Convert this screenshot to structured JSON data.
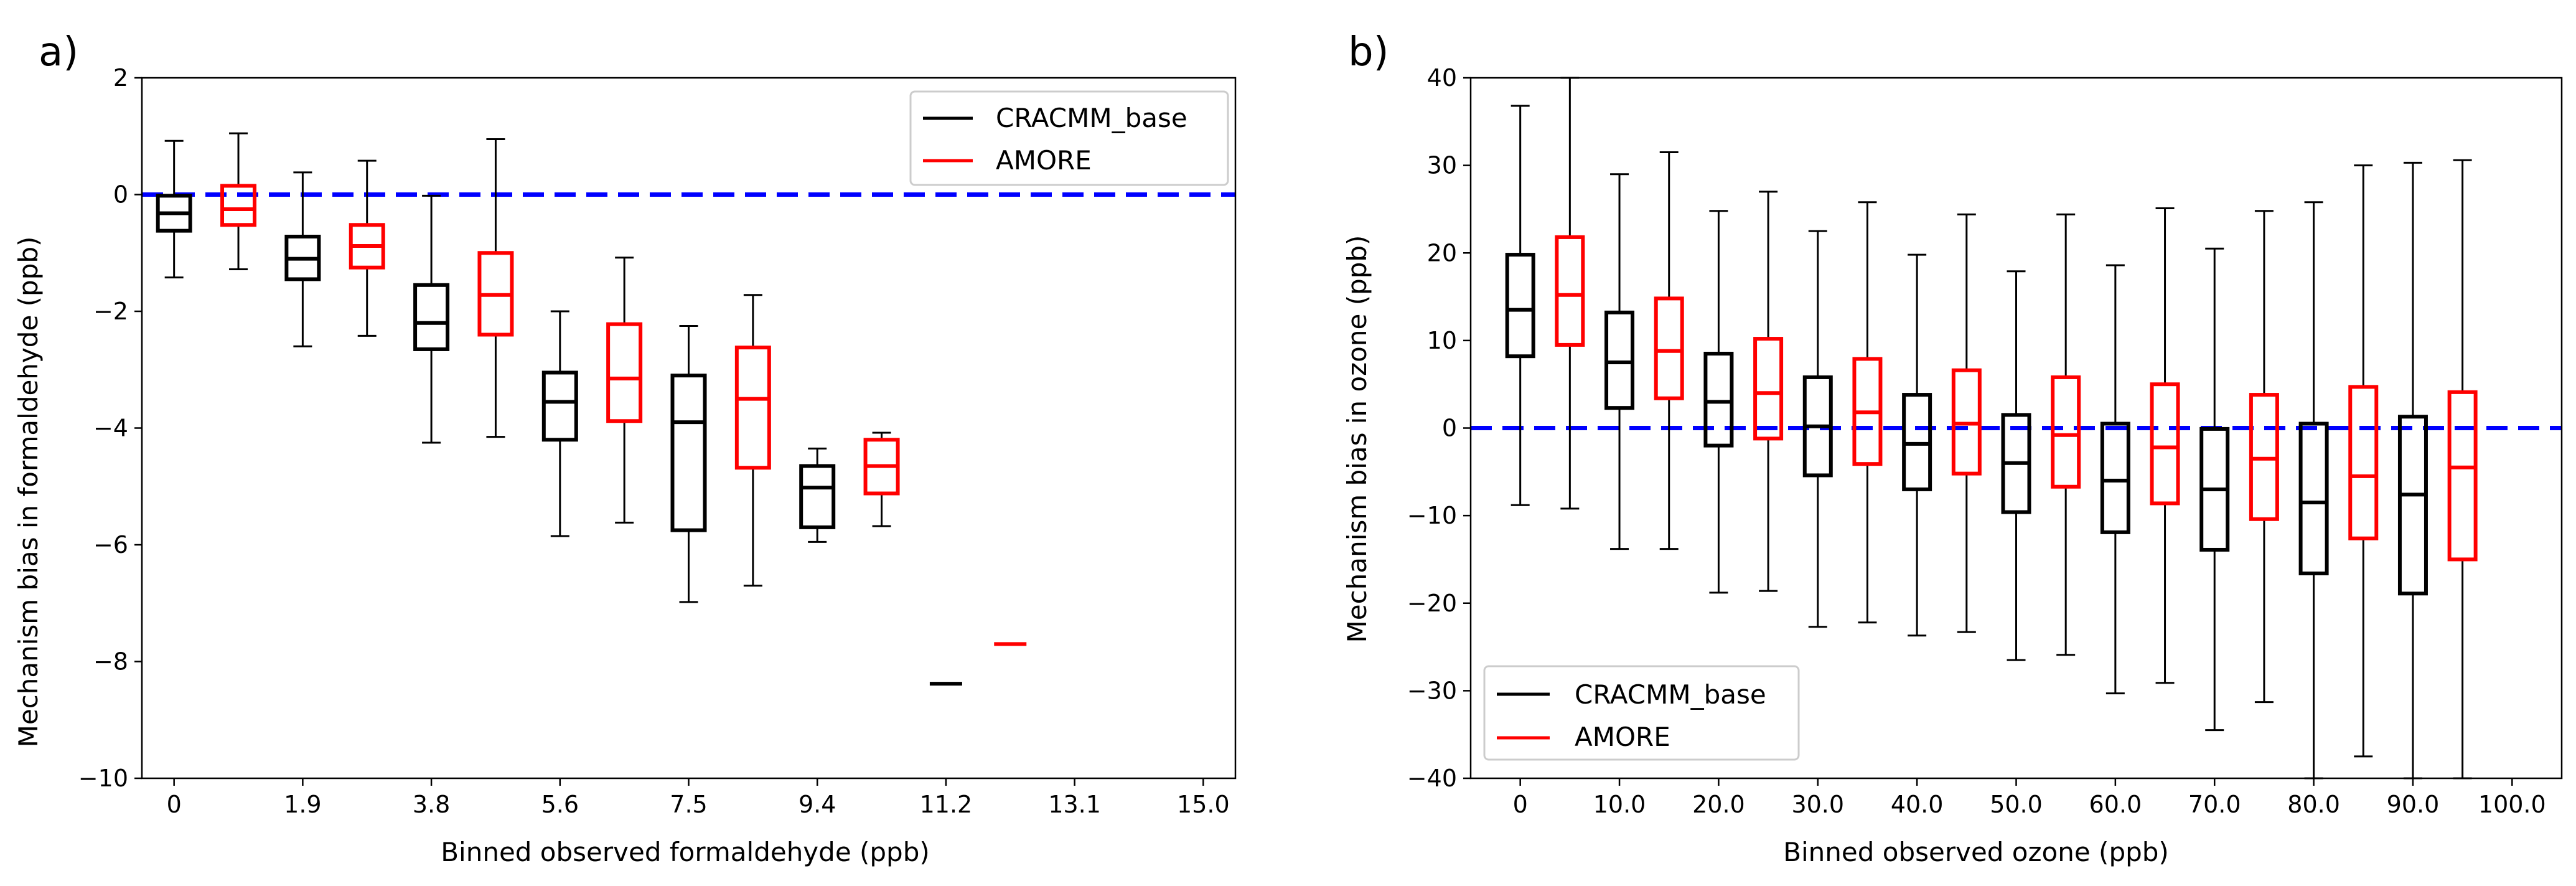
{
  "colors": {
    "CRACMM_base": "#000000",
    "AMORE": "#ff0000",
    "zero_line": "#0000ff"
  },
  "chart_data": [
    {
      "id": "a",
      "type": "box",
      "panel_label": "a)",
      "xlabel": "Binned observed formaldehyde (ppb)",
      "ylabel": "Mechanism bias in formaldehyde (ppb)",
      "ylim": [
        -10,
        2
      ],
      "yticks": [
        -10,
        -8,
        -6,
        -4,
        -2,
        0,
        2
      ],
      "ytick_labels": [
        "−10",
        "−8",
        "−6",
        "−4",
        "−2",
        "0",
        "2"
      ],
      "categories": [
        "0",
        "1.9",
        "3.8",
        "5.6",
        "7.5",
        "9.4",
        "11.2",
        "13.1",
        "15.0"
      ],
      "reference_line": 0,
      "legend": {
        "position": "upper right",
        "entries": [
          "CRACMM_base",
          "AMORE"
        ]
      },
      "series": [
        {
          "name": "CRACMM_base",
          "boxes": [
            {
              "whislo": -1.42,
              "q1": -0.62,
              "med": -0.32,
              "q3": -0.02,
              "whishi": 0.92
            },
            {
              "whislo": -2.6,
              "q1": -1.45,
              "med": -1.1,
              "q3": -0.72,
              "whishi": 0.38
            },
            {
              "whislo": -4.25,
              "q1": -2.65,
              "med": -2.2,
              "q3": -1.55,
              "whishi": -0.02
            },
            {
              "whislo": -5.85,
              "q1": -4.2,
              "med": -3.55,
              "q3": -3.05,
              "whishi": -2.0
            },
            {
              "whislo": -6.98,
              "q1": -5.75,
              "med": -3.9,
              "q3": -3.1,
              "whishi": -2.25
            },
            {
              "whislo": -5.95,
              "q1": -5.7,
              "med": -5.02,
              "q3": -4.65,
              "whishi": -4.35
            },
            {
              "whislo": -8.38,
              "q1": -8.38,
              "med": -8.38,
              "q3": -8.38,
              "whishi": -8.38
            }
          ]
        },
        {
          "name": "AMORE",
          "boxes": [
            {
              "whislo": -1.28,
              "q1": -0.52,
              "med": -0.25,
              "q3": 0.15,
              "whishi": 1.05
            },
            {
              "whislo": -2.42,
              "q1": -1.25,
              "med": -0.88,
              "q3": -0.52,
              "whishi": 0.58
            },
            {
              "whislo": -4.15,
              "q1": -2.4,
              "med": -1.72,
              "q3": -1.0,
              "whishi": 0.95
            },
            {
              "whislo": -5.62,
              "q1": -3.88,
              "med": -3.15,
              "q3": -2.22,
              "whishi": -1.08
            },
            {
              "whislo": -6.7,
              "q1": -4.68,
              "med": -3.5,
              "q3": -2.62,
              "whishi": -1.72
            },
            {
              "whislo": -5.68,
              "q1": -5.12,
              "med": -4.65,
              "q3": -4.2,
              "whishi": -4.08
            },
            {
              "whislo": -7.7,
              "q1": -7.7,
              "med": -7.7,
              "q3": -7.7,
              "whishi": -7.7
            }
          ]
        }
      ]
    },
    {
      "id": "b",
      "type": "box",
      "panel_label": "b)",
      "xlabel": "Binned observed ozone (ppb)",
      "ylabel": "Mechanism bias in ozone (ppb)",
      "ylim": [
        -40,
        40
      ],
      "yticks": [
        -40,
        -30,
        -20,
        -10,
        0,
        10,
        20,
        30,
        40
      ],
      "ytick_labels": [
        "−40",
        "−30",
        "−20",
        "−10",
        "0",
        "10",
        "20",
        "30",
        "40"
      ],
      "categories": [
        "0",
        "10.0",
        "20.0",
        "30.0",
        "40.0",
        "50.0",
        "60.0",
        "70.0",
        "80.0",
        "90.0",
        "100.0"
      ],
      "reference_line": 0,
      "legend": {
        "position": "lower left",
        "entries": [
          "CRACMM_base",
          "AMORE"
        ]
      },
      "series": [
        {
          "name": "CRACMM_base",
          "boxes": [
            {
              "whislo": -8.8,
              "q1": 8.2,
              "med": 13.5,
              "q3": 19.8,
              "whishi": 36.8
            },
            {
              "whislo": -13.8,
              "q1": 2.3,
              "med": 7.5,
              "q3": 13.2,
              "whishi": 29.0
            },
            {
              "whislo": -18.8,
              "q1": -2.0,
              "med": 3.0,
              "q3": 8.5,
              "whishi": 24.8
            },
            {
              "whislo": -22.7,
              "q1": -5.4,
              "med": 0.2,
              "q3": 5.8,
              "whishi": 22.5
            },
            {
              "whislo": -23.7,
              "q1": -7.0,
              "med": -1.8,
              "q3": 3.8,
              "whishi": 19.8
            },
            {
              "whislo": -26.5,
              "q1": -9.6,
              "med": -4.0,
              "q3": 1.5,
              "whishi": 17.9
            },
            {
              "whislo": -30.3,
              "q1": -11.9,
              "med": -6.0,
              "q3": 0.5,
              "whishi": 18.6
            },
            {
              "whislo": -34.5,
              "q1": -13.9,
              "med": -7.0,
              "q3": -0.1,
              "whishi": 20.5
            },
            {
              "whislo": -40.0,
              "q1": -16.6,
              "med": -8.5,
              "q3": 0.5,
              "whishi": 25.8
            },
            {
              "whislo": -40.0,
              "q1": -18.9,
              "med": -7.6,
              "q3": 1.3,
              "whishi": 30.3
            }
          ]
        },
        {
          "name": "AMORE",
          "boxes": [
            {
              "whislo": -9.2,
              "q1": 9.5,
              "med": 15.2,
              "q3": 21.8,
              "whishi": 40.0
            },
            {
              "whislo": -13.8,
              "q1": 3.4,
              "med": 8.8,
              "q3": 14.8,
              "whishi": 31.5
            },
            {
              "whislo": -18.6,
              "q1": -1.2,
              "med": 4.0,
              "q3": 10.2,
              "whishi": 27.0
            },
            {
              "whislo": -22.2,
              "q1": -4.1,
              "med": 1.8,
              "q3": 7.9,
              "whishi": 25.8
            },
            {
              "whislo": -23.3,
              "q1": -5.2,
              "med": 0.5,
              "q3": 6.6,
              "whishi": 24.4
            },
            {
              "whislo": -25.9,
              "q1": -6.7,
              "med": -0.8,
              "q3": 5.8,
              "whishi": 24.4
            },
            {
              "whislo": -29.1,
              "q1": -8.6,
              "med": -2.2,
              "q3": 5.0,
              "whishi": 25.1
            },
            {
              "whislo": -31.3,
              "q1": -10.4,
              "med": -3.5,
              "q3": 3.8,
              "whishi": 24.8
            },
            {
              "whislo": -37.5,
              "q1": -12.6,
              "med": -5.5,
              "q3": 4.7,
              "whishi": 30.0
            },
            {
              "whislo": -40.0,
              "q1": -15.0,
              "med": -4.5,
              "q3": 4.1,
              "whishi": 30.6
            }
          ]
        }
      ]
    }
  ]
}
